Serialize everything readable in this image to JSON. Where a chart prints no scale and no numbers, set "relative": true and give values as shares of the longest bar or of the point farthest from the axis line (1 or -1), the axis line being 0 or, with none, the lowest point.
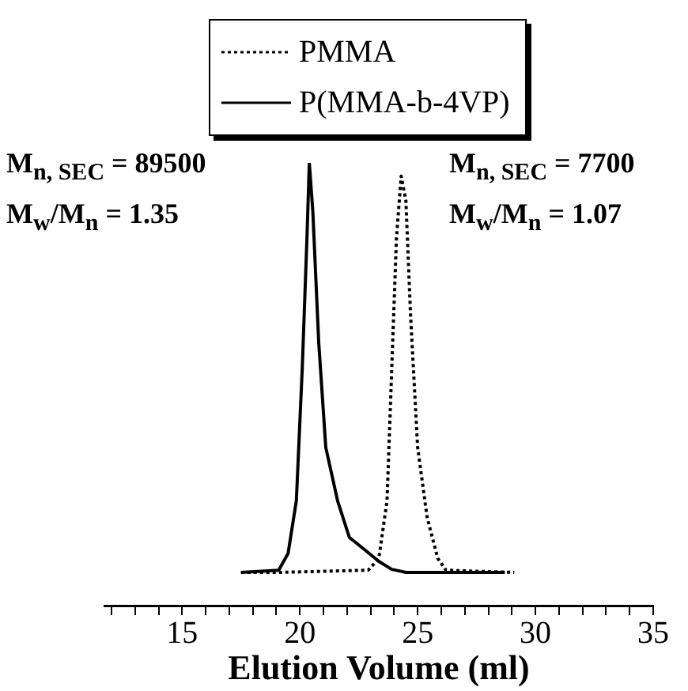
{
  "chart_data": {
    "type": "line",
    "relative": true,
    "xlabel": "Elution Volume (ml)",
    "xlim": [
      11.7,
      35
    ],
    "xticks": [
      {
        "value": 12,
        "label": null
      },
      {
        "value": 13,
        "label": null
      },
      {
        "value": 14,
        "label": null
      },
      15,
      {
        "value": 16,
        "label": null
      },
      {
        "value": 17,
        "label": null
      },
      {
        "value": 18,
        "label": null
      },
      {
        "value": 19,
        "label": null
      },
      20,
      {
        "value": 21,
        "label": null
      },
      {
        "value": 22,
        "label": null
      },
      {
        "value": 23,
        "label": null
      },
      {
        "value": 24,
        "label": null
      },
      25,
      {
        "value": 26,
        "label": null
      },
      {
        "value": 27,
        "label": null
      },
      {
        "value": 28,
        "label": null
      },
      {
        "value": 29,
        "label": null
      },
      30,
      {
        "value": 31,
        "label": null
      },
      {
        "value": 32,
        "label": null
      },
      {
        "value": 33,
        "label": null
      },
      {
        "value": 34,
        "label": null
      },
      35
    ],
    "legend": "top",
    "grid": false,
    "marker": "none",
    "series": [
      {
        "name": "PMMA",
        "color": "#000000",
        "line_style": "dotted",
        "x": [
          17.5,
          19.1,
          22.9,
          23.35,
          23.7,
          23.9,
          24.1,
          24.3,
          24.5,
          24.7,
          25.0,
          25.4,
          25.85,
          26.2,
          29.1
        ],
        "values": [
          0.075,
          0.075,
          0.08,
          0.106,
          0.237,
          0.535,
          0.83,
          0.97,
          0.915,
          0.654,
          0.357,
          0.2,
          0.107,
          0.08,
          0.075
        ]
      },
      {
        "name": "P(MMA-b-4VP)",
        "color": "#000000",
        "line_style": "solid",
        "x": [
          17.5,
          19.1,
          19.5,
          19.85,
          20.1,
          20.3,
          20.4,
          20.55,
          20.8,
          21.1,
          21.6,
          22.1,
          22.8,
          23.35,
          23.9,
          24.5,
          28.7
        ],
        "values": [
          0.075,
          0.08,
          0.118,
          0.237,
          0.535,
          0.83,
          1.0,
          0.89,
          0.594,
          0.357,
          0.237,
          0.154,
          0.124,
          0.1,
          0.082,
          0.075,
          0.075
        ]
      }
    ],
    "annotations": [
      "M$_{n, SEC}$ = 89500",
      "M$_{w}$/M$_{n}$ = 1.35",
      "M$_{n, SEC}$ = 7700",
      "M$_{w}$/M$_{n}$ = 1.07"
    ]
  }
}
